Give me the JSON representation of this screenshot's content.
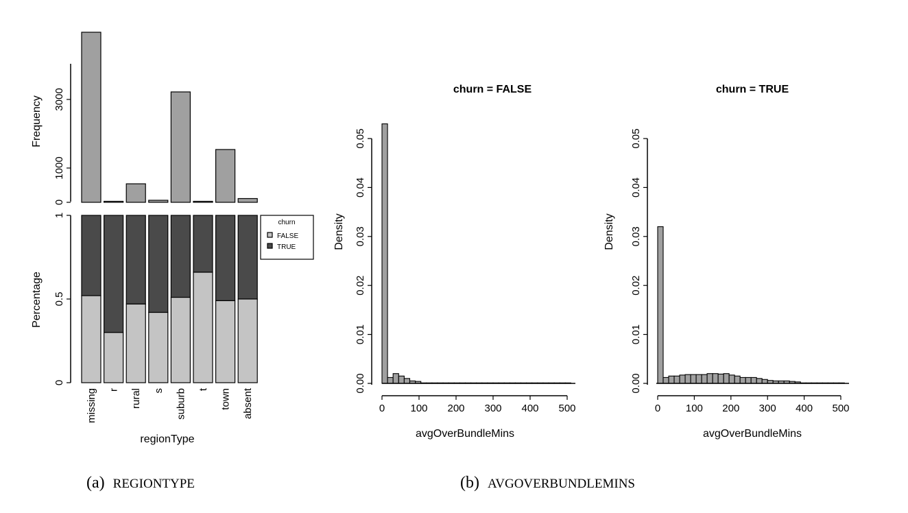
{
  "chart_data": [
    {
      "type": "bar",
      "categories": [
        "missing",
        "r",
        "rural",
        "s",
        "suburb",
        "t",
        "town",
        "absent"
      ],
      "ylabel": "Frequency",
      "yticks": [
        0,
        1000,
        3000
      ],
      "ylim": [
        0,
        5000
      ],
      "values": [
        4960,
        20,
        540,
        60,
        3220,
        15,
        1540,
        110
      ]
    },
    {
      "type": "bar",
      "stacked": true,
      "categories": [
        "missing",
        "r",
        "rural",
        "s",
        "suburb",
        "t",
        "town",
        "absent"
      ],
      "xlabel": "regionType",
      "ylabel": "Percentage",
      "yticks": [
        "0",
        "0.5",
        "1"
      ],
      "ylim": [
        0,
        1
      ],
      "legend": {
        "title": "churn",
        "entries": [
          "FALSE",
          "TRUE"
        ],
        "placement": "right"
      },
      "series": [
        {
          "name": "FALSE",
          "values": [
            0.52,
            0.3,
            0.47,
            0.42,
            0.51,
            0.66,
            0.49,
            0.5
          ]
        },
        {
          "name": "TRUE",
          "values": [
            0.48,
            0.7,
            0.53,
            0.58,
            0.49,
            0.34,
            0.51,
            0.5
          ]
        }
      ]
    },
    {
      "type": "bar",
      "histogram": true,
      "title": "churn = FALSE",
      "xlabel": "avgOverBundleMins",
      "ylabel": "Density",
      "xticks": [
        0,
        100,
        200,
        300,
        400,
        500
      ],
      "yticks": [
        "0.00",
        "0.01",
        "0.02",
        "0.03",
        "0.04",
        "0.05"
      ],
      "xlim": [
        0,
        500
      ],
      "ylim": [
        0,
        0.05
      ],
      "bin_width": 15,
      "values": [
        0.053,
        0.0012,
        0.002,
        0.0015,
        0.001,
        0.0005,
        0.0004,
        0.0001,
        0.0001,
        0.0001,
        0.0001,
        0.0001,
        0.0001,
        0.0001,
        0.0001,
        0.0001,
        0.0001,
        0.0001,
        0.0001,
        0.0001,
        0.0001,
        0.0001,
        0.0001,
        0.0001,
        0.0001,
        0.0001,
        0.0001,
        0.0001,
        0.0001,
        0.0001,
        0.0001,
        0.0001,
        0.0001,
        0.0001
      ]
    },
    {
      "type": "bar",
      "histogram": true,
      "title": "churn = TRUE",
      "xlabel": "avgOverBundleMins",
      "ylabel": "Density",
      "xticks": [
        0,
        100,
        200,
        300,
        400,
        500
      ],
      "yticks": [
        "0.00",
        "0.01",
        "0.02",
        "0.03",
        "0.04",
        "0.05"
      ],
      "xlim": [
        0,
        500
      ],
      "ylim": [
        0,
        0.05
      ],
      "bin_width": 15,
      "values": [
        0.032,
        0.0012,
        0.0015,
        0.0015,
        0.0017,
        0.0018,
        0.0018,
        0.0018,
        0.0018,
        0.002,
        0.002,
        0.0019,
        0.002,
        0.0017,
        0.0015,
        0.0012,
        0.0012,
        0.0012,
        0.001,
        0.0008,
        0.0006,
        0.0005,
        0.0005,
        0.0005,
        0.0004,
        0.0003,
        0.0001,
        0.0001,
        0.0001,
        0.0001,
        0.0001,
        0.0001,
        0.0001,
        0.0001
      ]
    }
  ],
  "captions": {
    "a_label": "(a)",
    "a_text": "REGIONTYPE",
    "b_label": "(b)",
    "b_text": "AVGOVERBUNDLEMINS"
  },
  "colors": {
    "bar_gray": "#a0a0a0",
    "false_fill": "#c4c4c4",
    "true_fill": "#4a4a4a"
  }
}
